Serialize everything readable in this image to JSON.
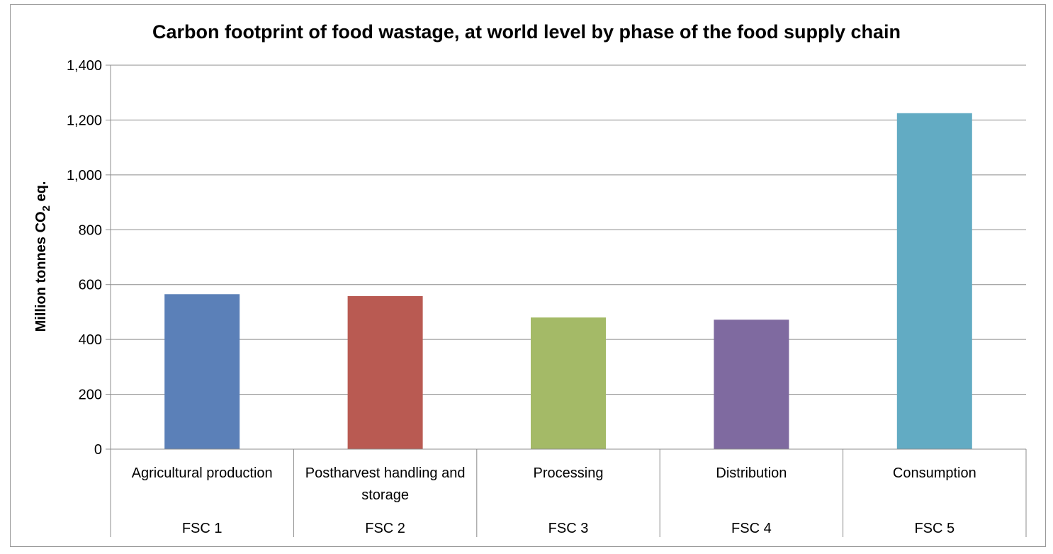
{
  "chart_data": {
    "type": "bar",
    "title": "Carbon footprint of food wastage, at world level by phase of the food supply chain",
    "ylabel": {
      "prefix": "Million tonnes CO",
      "subscript": "2",
      "suffix": " eq."
    },
    "xlabel": "",
    "ylim": [
      0,
      1400
    ],
    "yticks": [
      0,
      200,
      400,
      600,
      800,
      1000,
      1200,
      1400
    ],
    "ytick_labels": [
      "0",
      "200",
      "400",
      "600",
      "800",
      "1,000",
      "1,200",
      "1,400"
    ],
    "grid": true,
    "legend": "none",
    "categories": [
      [
        "Agricultural production"
      ],
      [
        "Postharvest handling and",
        "storage"
      ],
      [
        "Processing"
      ],
      [
        "Distribution"
      ],
      [
        "Consumption"
      ]
    ],
    "groups": [
      "FSC 1",
      "FSC 2",
      "FSC 3",
      "FSC 4",
      "FSC 5"
    ],
    "values": [
      565,
      558,
      480,
      472,
      1225
    ],
    "colors": [
      "#5b80b8",
      "#b95a52",
      "#a4ba67",
      "#7f6aa0",
      "#62abc3"
    ]
  }
}
